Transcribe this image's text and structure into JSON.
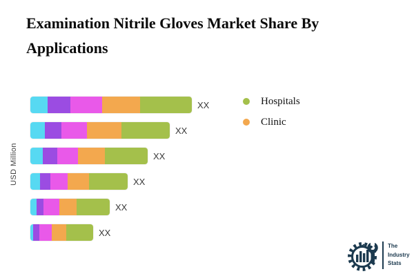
{
  "chart_data": {
    "type": "bar",
    "orientation": "horizontal",
    "stacked": true,
    "grid": false,
    "background": "#ffffff",
    "title": "Examination Nitrile Gloves Market Share By Applications",
    "xlabel": "",
    "ylabel": "USD Million",
    "categories": [
      "",
      "",
      "",
      "",
      "",
      ""
    ],
    "bar_end_labels": [
      "XX",
      "XX",
      "XX",
      "XX",
      "XX",
      "XX"
    ],
    "series": [
      {
        "name": "unlabeled-cyan",
        "color": "#57d9f2",
        "values": [
          25,
          21,
          18,
          14,
          9,
          4
        ]
      },
      {
        "name": "unlabeled-purple",
        "color": "#9b4ce2",
        "values": [
          33,
          24,
          21,
          15,
          10,
          9
        ]
      },
      {
        "name": "unlabeled-magenta",
        "color": "#e959e9",
        "values": [
          46,
          37,
          30,
          25,
          23,
          18
        ]
      },
      {
        "name": "clinic",
        "color": "#f3a84e",
        "values": [
          55,
          50,
          39,
          31,
          25,
          21
        ]
      },
      {
        "name": "hospitals",
        "color": "#a4c04b",
        "values": [
          75,
          70,
          62,
          56,
          48,
          39
        ]
      }
    ],
    "values_note": "actual values masked as XX in source; series values are relative bar-segment lengths",
    "legend_position": "right-top",
    "legend": [
      {
        "label": "Hospitals",
        "color": "#a4c04b"
      },
      {
        "label": "Clinic",
        "color": "#f3a84e"
      }
    ]
  },
  "colors": {
    "value_label_text": "#3a3a3a",
    "axis_label_text": "#3f3f3f",
    "logo_navy": "#1c3a4f"
  },
  "logo": {
    "icon": "gear-wrench-chart-icon",
    "lines": [
      "The",
      "Industry",
      "Stats"
    ]
  }
}
